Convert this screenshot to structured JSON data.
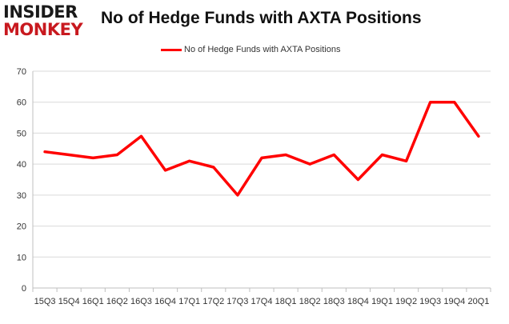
{
  "logo": {
    "line1": "INSIDER",
    "line2": "MONKEY"
  },
  "chart_data": {
    "type": "line",
    "title": "No of Hedge Funds with AXTA Positions",
    "xlabel": "",
    "ylabel": "",
    "categories": [
      "15Q3",
      "15Q4",
      "16Q1",
      "16Q2",
      "16Q3",
      "16Q4",
      "17Q1",
      "17Q2",
      "17Q3",
      "17Q4",
      "18Q1",
      "18Q2",
      "18Q3",
      "18Q4",
      "19Q1",
      "19Q2",
      "19Q3",
      "19Q4",
      "20Q1"
    ],
    "series": [
      {
        "name": "No of Hedge Funds with AXTA Positions",
        "values": [
          44,
          43,
          42,
          43,
          49,
          38,
          41,
          39,
          30,
          42,
          43,
          40,
          43,
          35,
          43,
          41,
          60,
          60,
          49
        ]
      }
    ],
    "ylim": [
      0,
      70
    ],
    "yticks": [
      0,
      10,
      20,
      30,
      40,
      50,
      60,
      70
    ],
    "grid": true,
    "legend_position": "top-center",
    "colors": {
      "line": "#ff0000",
      "grid": "#d9d9d9",
      "axis": "#bfbfbf"
    }
  }
}
